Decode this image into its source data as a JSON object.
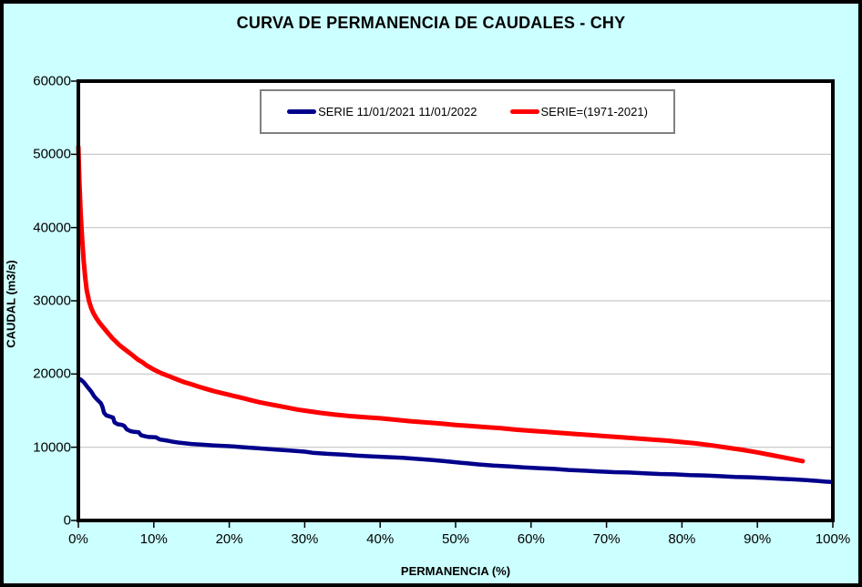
{
  "title": "CURVA DE PERMANENCIA DE CAUDALES - CHY",
  "colors": {
    "page_background": "#CCFFFF",
    "outer_border": "#000000",
    "plot_background": "#FFFFFF",
    "plot_frame": "#000000",
    "gridline": "#C6C6C6",
    "tick": "#000000",
    "legend_border": "#808080",
    "series_blue": "#00008B",
    "series_red": "#FE0000"
  },
  "chart_data": {
    "type": "line",
    "title": "CURVA DE PERMANENCIA DE CAUDALES - CHY",
    "xlabel": "PERMANENCIA (%)",
    "ylabel": "CAUDAL (m3/s)",
    "xlim": [
      0,
      100
    ],
    "ylim": [
      0,
      60000
    ],
    "grid": "horizontal",
    "legend_position": "top-center-inside",
    "x_ticks": [
      {
        "value": 0,
        "label": "0%"
      },
      {
        "value": 10,
        "label": "10%"
      },
      {
        "value": 20,
        "label": "20%"
      },
      {
        "value": 30,
        "label": "30%"
      },
      {
        "value": 40,
        "label": "40%"
      },
      {
        "value": 50,
        "label": "50%"
      },
      {
        "value": 60,
        "label": "60%"
      },
      {
        "value": 70,
        "label": "70%"
      },
      {
        "value": 80,
        "label": "80%"
      },
      {
        "value": 90,
        "label": "90%"
      },
      {
        "value": 100,
        "label": "100%"
      }
    ],
    "y_ticks": [
      {
        "value": 0,
        "label": "0"
      },
      {
        "value": 10000,
        "label": "10000"
      },
      {
        "value": 20000,
        "label": "20000"
      },
      {
        "value": 30000,
        "label": "30000"
      },
      {
        "value": 40000,
        "label": "40000"
      },
      {
        "value": 50000,
        "label": "50000"
      },
      {
        "value": 60000,
        "label": "60000"
      }
    ],
    "series": [
      {
        "name": "SERIE 11/01/2021 11/01/2022",
        "color": "#00008B",
        "line_width": 4.5,
        "points": [
          [
            0,
            19400
          ],
          [
            0.3,
            19250
          ],
          [
            0.7,
            18900
          ],
          [
            1,
            18500
          ],
          [
            1.3,
            18100
          ],
          [
            1.7,
            17600
          ],
          [
            2,
            17100
          ],
          [
            2.3,
            16700
          ],
          [
            2.7,
            16300
          ],
          [
            3,
            16000
          ],
          [
            3.2,
            15500
          ],
          [
            3.4,
            14700
          ],
          [
            3.7,
            14350
          ],
          [
            4.3,
            14150
          ],
          [
            4.6,
            14050
          ],
          [
            4.8,
            13400
          ],
          [
            5.2,
            13150
          ],
          [
            5.8,
            13050
          ],
          [
            6.1,
            12900
          ],
          [
            6.4,
            12450
          ],
          [
            6.9,
            12200
          ],
          [
            7.4,
            12100
          ],
          [
            8,
            12050
          ],
          [
            8.3,
            11650
          ],
          [
            8.8,
            11500
          ],
          [
            9.3,
            11400
          ],
          [
            10.3,
            11350
          ],
          [
            10.8,
            11050
          ],
          [
            11.5,
            10950
          ],
          [
            12.5,
            10750
          ],
          [
            13.5,
            10600
          ],
          [
            15,
            10450
          ],
          [
            16.5,
            10350
          ],
          [
            18,
            10250
          ],
          [
            20,
            10150
          ],
          [
            22,
            10000
          ],
          [
            24,
            9850
          ],
          [
            26,
            9700
          ],
          [
            28,
            9550
          ],
          [
            30,
            9400
          ],
          [
            31,
            9250
          ],
          [
            33,
            9100
          ],
          [
            35,
            9000
          ],
          [
            37,
            8850
          ],
          [
            39,
            8750
          ],
          [
            41,
            8650
          ],
          [
            43,
            8550
          ],
          [
            45,
            8400
          ],
          [
            47,
            8250
          ],
          [
            48.5,
            8100
          ],
          [
            50,
            7950
          ],
          [
            51.5,
            7800
          ],
          [
            53,
            7650
          ],
          [
            55,
            7500
          ],
          [
            57,
            7400
          ],
          [
            59,
            7250
          ],
          [
            61,
            7150
          ],
          [
            63,
            7050
          ],
          [
            65,
            6900
          ],
          [
            67,
            6800
          ],
          [
            69,
            6700
          ],
          [
            71,
            6600
          ],
          [
            73,
            6550
          ],
          [
            75,
            6450
          ],
          [
            77,
            6350
          ],
          [
            79,
            6300
          ],
          [
            81,
            6200
          ],
          [
            83,
            6150
          ],
          [
            85,
            6050
          ],
          [
            87,
            5950
          ],
          [
            89,
            5900
          ],
          [
            91,
            5800
          ],
          [
            93,
            5700
          ],
          [
            95,
            5600
          ],
          [
            96.5,
            5500
          ],
          [
            98,
            5400
          ],
          [
            99,
            5300
          ],
          [
            99.8,
            5250
          ]
        ]
      },
      {
        "name": "SERIE=(1971-2021)",
        "color": "#FE0000",
        "line_width": 5,
        "points": [
          [
            0,
            51000
          ],
          [
            0.15,
            46000
          ],
          [
            0.3,
            42000
          ],
          [
            0.5,
            38500
          ],
          [
            0.7,
            35500
          ],
          [
            0.9,
            33200
          ],
          [
            1.1,
            31500
          ],
          [
            1.4,
            30000
          ],
          [
            1.7,
            29000
          ],
          [
            2,
            28300
          ],
          [
            2.4,
            27600
          ],
          [
            2.8,
            27000
          ],
          [
            3.2,
            26500
          ],
          [
            3.6,
            26000
          ],
          [
            4,
            25500
          ],
          [
            4.5,
            24900
          ],
          [
            5,
            24400
          ],
          [
            5.5,
            23900
          ],
          [
            6,
            23500
          ],
          [
            6.5,
            23100
          ],
          [
            7,
            22700
          ],
          [
            7.5,
            22300
          ],
          [
            8,
            21900
          ],
          [
            8.5,
            21600
          ],
          [
            9,
            21200
          ],
          [
            9.5,
            20900
          ],
          [
            10,
            20600
          ],
          [
            11,
            20100
          ],
          [
            12,
            19700
          ],
          [
            13,
            19300
          ],
          [
            14,
            18900
          ],
          [
            15,
            18600
          ],
          [
            16,
            18250
          ],
          [
            17,
            17950
          ],
          [
            18,
            17650
          ],
          [
            19,
            17400
          ],
          [
            20,
            17150
          ],
          [
            21,
            16900
          ],
          [
            22,
            16650
          ],
          [
            23,
            16400
          ],
          [
            24,
            16150
          ],
          [
            25,
            15950
          ],
          [
            26,
            15750
          ],
          [
            27,
            15550
          ],
          [
            28,
            15350
          ],
          [
            29,
            15150
          ],
          [
            30,
            15000
          ],
          [
            32,
            14700
          ],
          [
            34,
            14450
          ],
          [
            36,
            14250
          ],
          [
            38,
            14100
          ],
          [
            40,
            13950
          ],
          [
            42,
            13750
          ],
          [
            44,
            13550
          ],
          [
            46,
            13400
          ],
          [
            48,
            13250
          ],
          [
            50,
            13050
          ],
          [
            52,
            12900
          ],
          [
            54,
            12750
          ],
          [
            56,
            12600
          ],
          [
            58,
            12400
          ],
          [
            60,
            12250
          ],
          [
            62,
            12100
          ],
          [
            64,
            11950
          ],
          [
            66,
            11800
          ],
          [
            68,
            11650
          ],
          [
            70,
            11500
          ],
          [
            72,
            11350
          ],
          [
            74,
            11200
          ],
          [
            76,
            11050
          ],
          [
            78,
            10900
          ],
          [
            80,
            10700
          ],
          [
            82,
            10500
          ],
          [
            84,
            10250
          ],
          [
            86,
            9950
          ],
          [
            88,
            9650
          ],
          [
            90,
            9300
          ],
          [
            92,
            8900
          ],
          [
            94,
            8500
          ],
          [
            95,
            8300
          ],
          [
            96,
            8100
          ]
        ]
      }
    ]
  }
}
